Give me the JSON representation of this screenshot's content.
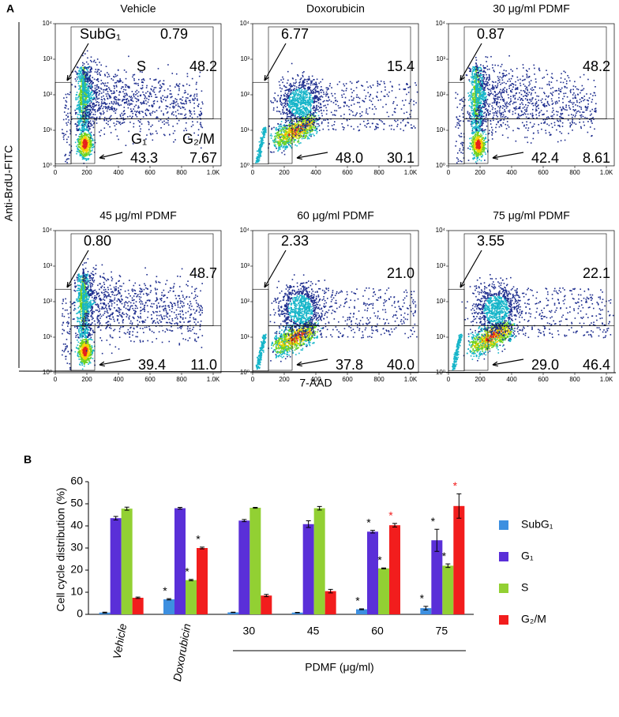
{
  "panel_a": {
    "label": "A",
    "y_label": "Anti-BrdU-FITC",
    "x_label": "7-AAD",
    "xlim": [
      0,
      1050
    ],
    "xticks": [
      0,
      200,
      400,
      600,
      800,
      {
        "value": 1000,
        "label": "1.0K"
      }
    ],
    "ylim": [
      1,
      10000
    ],
    "log_y": true,
    "yticks": [
      {
        "value": 1,
        "label": "10⁰"
      },
      {
        "value": 10,
        "label": "10¹"
      },
      {
        "value": 100,
        "label": "10²"
      },
      {
        "value": 1000,
        "label": "10³"
      },
      {
        "value": 10000,
        "label": "10⁴"
      }
    ],
    "gate_names": {
      "subg1": "SubG₁",
      "s": "S",
      "g1": "G₁",
      "g2m": "G₂/M"
    },
    "plots": [
      {
        "title": "Vehicle",
        "subg1": "0.79",
        "s": "48.2",
        "g1": "43.3",
        "g2m": "7.67"
      },
      {
        "title": "Doxorubicin",
        "subg1": "6.77",
        "s": "15.4",
        "g1": "48.0",
        "g2m": "30.1"
      },
      {
        "title": "30 μg/ml PDMF",
        "subg1": "0.87",
        "s": "48.2",
        "g1": "42.4",
        "g2m": "8.61"
      },
      {
        "title": "45 μg/ml PDMF",
        "subg1": "0.80",
        "s": "48.7",
        "g1": "39.4",
        "g2m": "11.0"
      },
      {
        "title": "60 μg/ml PDMF",
        "subg1": "2.33",
        "s": "21.0",
        "g1": "37.8",
        "g2m": "40.0"
      },
      {
        "title": "75 μg/ml PDMF",
        "subg1": "3.55",
        "s": "22.1",
        "g1": "29.0",
        "g2m": "46.4"
      }
    ]
  },
  "chart_data": {
    "type": "bar",
    "panel_label": "B",
    "y_label": "Cell cycle distribution (%)",
    "categories": [
      "Vehicle",
      "Doxorubicin",
      "30",
      "45",
      "60",
      "75"
    ],
    "group_label": "PDMF (μg/ml)",
    "ylim": [
      0,
      60
    ],
    "yticks": [
      0,
      10,
      20,
      30,
      40,
      50,
      60
    ],
    "series": [
      {
        "name": "SubG₁",
        "color": "#3d8fe0",
        "values": [
          0.8,
          6.8,
          0.9,
          0.8,
          2.3,
          2.8
        ],
        "errors": [
          0.2,
          0.3,
          0.1,
          0.1,
          0.2,
          0.8
        ],
        "markers": [
          null,
          "*",
          null,
          null,
          "*",
          "*"
        ],
        "marker_colors": [
          null,
          "#000000",
          null,
          null,
          "#000000",
          "#000000"
        ]
      },
      {
        "name": "G₁",
        "color": "#5a2fd8",
        "values": [
          43.5,
          48.0,
          42.4,
          40.8,
          37.4,
          33.5
        ],
        "errors": [
          0.8,
          0.4,
          0.5,
          1.5,
          0.6,
          5.0
        ],
        "markers": [
          null,
          null,
          null,
          null,
          "*",
          "*"
        ],
        "marker_colors": [
          null,
          null,
          null,
          null,
          "#000000",
          "#000000"
        ]
      },
      {
        "name": "S",
        "color": "#92d033",
        "values": [
          47.8,
          15.5,
          48.2,
          48.0,
          20.8,
          22.0
        ],
        "errors": [
          0.7,
          0.3,
          0.2,
          0.8,
          0.2,
          0.8
        ],
        "markers": [
          null,
          "*",
          null,
          null,
          "*",
          "*"
        ],
        "marker_colors": [
          null,
          "#000000",
          null,
          null,
          "#000000",
          "#000000"
        ]
      },
      {
        "name": "G₂/M",
        "color": "#f21d1d",
        "values": [
          7.5,
          30.0,
          8.5,
          10.5,
          40.3,
          49.0
        ],
        "errors": [
          0.3,
          0.4,
          0.5,
          0.8,
          0.8,
          5.5
        ],
        "markers": [
          null,
          "*",
          null,
          null,
          "*",
          "*"
        ],
        "marker_colors": [
          null,
          "#000000",
          null,
          null,
          "#f21d1d",
          "#f21d1d"
        ]
      }
    ]
  }
}
